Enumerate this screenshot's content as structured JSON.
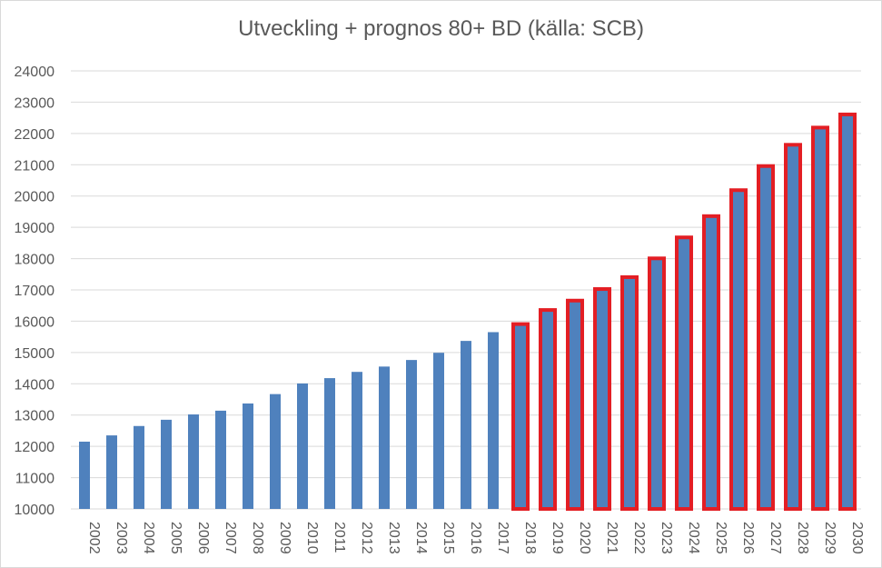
{
  "chart_data": {
    "type": "bar",
    "title": "Utveckling + prognos 80+ BD (källa: SCB)",
    "xlabel": "",
    "ylabel": "",
    "ylim": [
      10000,
      24000
    ],
    "ytick_step": 1000,
    "yticks": [
      "10000",
      "11000",
      "12000",
      "13000",
      "14000",
      "15000",
      "16000",
      "17000",
      "18000",
      "19000",
      "20000",
      "21000",
      "22000",
      "23000",
      "24000"
    ],
    "grid": true,
    "legend": "none",
    "categories": [
      "2002",
      "2003",
      "2004",
      "2005",
      "2006",
      "2007",
      "2008",
      "2009",
      "2010",
      "2011",
      "2012",
      "2013",
      "2014",
      "2015",
      "2016",
      "2017",
      "2018",
      "2019",
      "2020",
      "2021",
      "2022",
      "2023",
      "2024",
      "2025",
      "2026",
      "2027",
      "2028",
      "2029",
      "2030"
    ],
    "values": [
      12150,
      12350,
      12650,
      12850,
      13020,
      13140,
      13370,
      13670,
      14010,
      14180,
      14380,
      14550,
      14760,
      14990,
      15370,
      15650,
      15850,
      16300,
      16600,
      16970,
      17350,
      17950,
      18620,
      19300,
      20130,
      20900,
      21580,
      22130,
      22550
    ],
    "forecast_from": "2018",
    "colors": {
      "bar_fill": "#4f81bd",
      "forecast_outline": "#e31e24",
      "grid": "#d9d9d9",
      "text": "#595959"
    }
  }
}
